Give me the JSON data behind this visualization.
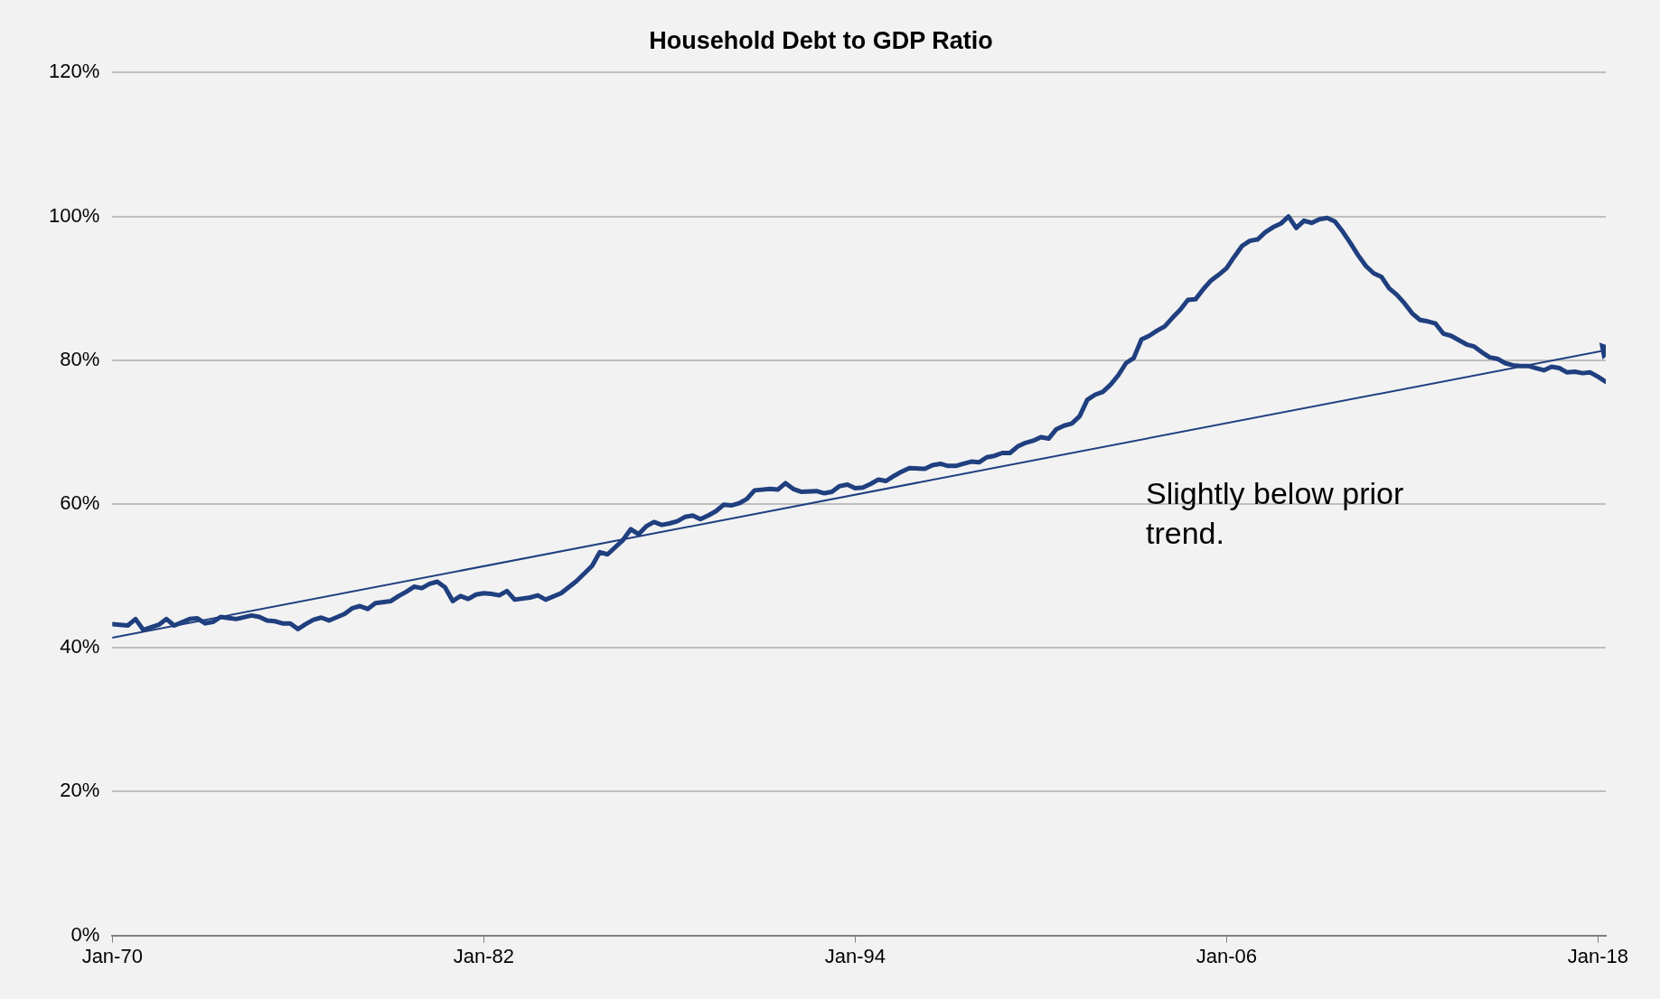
{
  "chart_data": {
    "type": "line",
    "title": "Household Debt to GDP Ratio",
    "annotations": [
      "Slightly below prior trend."
    ],
    "xlim": [
      "1970-01",
      "2018-04"
    ],
    "xticks": [
      {
        "value": "1970-01",
        "label": "Jan-70"
      },
      {
        "value": "1982-01",
        "label": "Jan-82"
      },
      {
        "value": "1994-01",
        "label": "Jan-94"
      },
      {
        "value": "2006-01",
        "label": "Jan-06"
      },
      {
        "value": "2018-01",
        "label": "Jan-18"
      }
    ],
    "ylim": [
      0,
      120
    ],
    "yticks": [
      {
        "value": 0,
        "label": "0%"
      },
      {
        "value": 20,
        "label": "20%"
      },
      {
        "value": 40,
        "label": "40%"
      },
      {
        "value": 60,
        "label": "60%"
      },
      {
        "value": 80,
        "label": "80%"
      },
      {
        "value": 100,
        "label": "100%"
      },
      {
        "value": 120,
        "label": "120%"
      }
    ],
    "grid": "y",
    "legend": false,
    "marker": "none",
    "line_style": "solid",
    "series": [
      {
        "color": "#1f3f7f",
        "x": [
          "1970-01",
          "1970-07",
          "1970-10",
          "1971-01",
          "1971-07",
          "1971-10",
          "1972-01",
          "1972-07",
          "1972-10",
          "1973-01",
          "1973-04",
          "1973-07",
          "1974-01",
          "1974-07",
          "1974-10",
          "1975-01",
          "1975-04",
          "1975-07",
          "1975-10",
          "1976-01",
          "1976-04",
          "1976-07",
          "1976-10",
          "1977-01",
          "1977-07",
          "1977-10",
          "1978-01",
          "1978-04",
          "1978-07",
          "1979-01",
          "1979-04",
          "1979-07",
          "1979-10",
          "1980-01",
          "1980-04",
          "1980-07",
          "1980-10",
          "1981-01",
          "1981-04",
          "1981-07",
          "1981-10",
          "1982-01",
          "1982-04",
          "1982-07",
          "1982-10",
          "1983-01",
          "1983-07",
          "1983-10",
          "1984-01",
          "1984-07",
          "1985-01",
          "1985-07",
          "1985-10",
          "1986-01",
          "1986-07",
          "1986-10",
          "1987-01",
          "1987-04",
          "1987-07",
          "1987-10",
          "1988-01",
          "1988-04",
          "1988-07",
          "1988-10",
          "1989-01",
          "1989-04",
          "1989-07",
          "1989-10",
          "1990-01",
          "1990-04",
          "1990-07",
          "1990-10",
          "1991-04",
          "1991-07",
          "1991-10",
          "1992-01",
          "1992-04",
          "1992-10",
          "1993-01",
          "1993-04",
          "1993-07",
          "1993-10",
          "1994-01",
          "1994-04",
          "1994-07",
          "1994-10",
          "1995-01",
          "1995-04",
          "1995-07",
          "1995-10",
          "1996-04",
          "1996-07",
          "1996-10",
          "1997-01",
          "1997-04",
          "1997-07",
          "1997-10",
          "1998-01",
          "1998-04",
          "1998-07",
          "1998-10",
          "1999-01",
          "1999-04",
          "1999-07",
          "1999-10",
          "2000-01",
          "2000-04",
          "2000-07",
          "2000-10",
          "2001-01",
          "2001-04",
          "2001-07",
          "2001-10",
          "2002-01",
          "2002-04",
          "2002-07",
          "2002-10",
          "2003-01",
          "2003-04",
          "2003-07",
          "2003-10",
          "2004-01",
          "2004-04",
          "2004-07",
          "2004-10",
          "2005-01",
          "2005-04",
          "2005-07",
          "2005-10",
          "2006-01",
          "2006-04",
          "2006-07",
          "2006-10",
          "2007-01",
          "2007-04",
          "2007-07",
          "2007-10",
          "2008-01",
          "2008-04",
          "2008-07",
          "2008-10",
          "2009-01",
          "2009-04",
          "2009-07",
          "2009-10",
          "2010-01",
          "2010-04",
          "2010-07",
          "2010-10",
          "2011-01",
          "2011-04",
          "2011-07",
          "2011-10",
          "2012-01",
          "2012-04",
          "2012-07",
          "2012-10",
          "2013-01",
          "2013-04",
          "2013-07",
          "2013-10",
          "2014-01",
          "2014-04",
          "2014-07",
          "2014-10",
          "2015-01",
          "2015-04",
          "2015-07",
          "2015-10",
          "2016-01",
          "2016-04",
          "2016-07",
          "2016-10",
          "2017-01",
          "2017-04",
          "2017-07",
          "2017-10",
          "2018-01",
          "2018-04"
        ],
        "values": [
          43.3,
          43.1,
          44.0,
          42.5,
          43.2,
          44.0,
          43.1,
          44.0,
          44.1,
          43.4,
          43.6,
          44.3,
          44.0,
          44.5,
          44.3,
          43.8,
          43.7,
          43.4,
          43.4,
          42.6,
          43.3,
          43.9,
          44.2,
          43.8,
          44.7,
          45.5,
          45.8,
          45.4,
          46.2,
          46.5,
          47.2,
          47.8,
          48.5,
          48.3,
          48.9,
          49.2,
          48.4,
          46.5,
          47.2,
          46.8,
          47.4,
          47.6,
          47.5,
          47.3,
          47.9,
          46.7,
          47.0,
          47.3,
          46.7,
          47.6,
          49.3,
          51.4,
          53.3,
          53.0,
          55.0,
          56.5,
          55.8,
          56.9,
          57.5,
          57.1,
          57.3,
          57.6,
          58.2,
          58.4,
          57.9,
          58.4,
          59.0,
          59.9,
          59.8,
          60.1,
          60.7,
          61.9,
          62.1,
          62.0,
          62.9,
          62.1,
          61.7,
          61.8,
          61.5,
          61.7,
          62.5,
          62.7,
          62.2,
          62.3,
          62.8,
          63.4,
          63.2,
          63.9,
          64.5,
          65.0,
          64.9,
          65.4,
          65.6,
          65.3,
          65.3,
          65.6,
          65.9,
          65.8,
          66.5,
          66.7,
          67.1,
          67.1,
          68.0,
          68.5,
          68.8,
          69.3,
          69.1,
          70.4,
          70.9,
          71.2,
          72.2,
          74.5,
          75.2,
          75.6,
          76.6,
          77.9,
          79.6,
          80.3,
          82.9,
          83.4,
          84.1,
          84.7,
          85.9,
          87.0,
          88.4,
          88.5,
          89.9,
          91.1,
          91.9,
          92.8,
          94.4,
          95.9,
          96.6,
          96.8,
          97.8,
          98.5,
          99.0,
          100.0,
          98.4,
          99.4,
          99.1,
          99.6,
          99.8,
          99.3,
          97.9,
          96.3,
          94.6,
          93.1,
          92.1,
          91.6,
          90.0,
          89.1,
          87.9,
          86.5,
          85.6,
          85.4,
          85.1,
          83.7,
          83.4,
          82.8,
          82.2,
          81.9,
          81.1,
          80.4,
          80.2,
          79.6,
          79.3,
          79.2,
          79.2,
          78.9,
          78.6,
          79.1,
          78.9,
          78.3,
          78.4,
          78.2,
          78.3,
          77.7,
          77.0
        ]
      },
      {
        "type": "line",
        "color": "#1f3f7f",
        "marker": "triangle",
        "x": [
          "1970-01",
          "2018-04"
        ],
        "values": [
          41.4,
          81.4
        ]
      }
    ]
  }
}
